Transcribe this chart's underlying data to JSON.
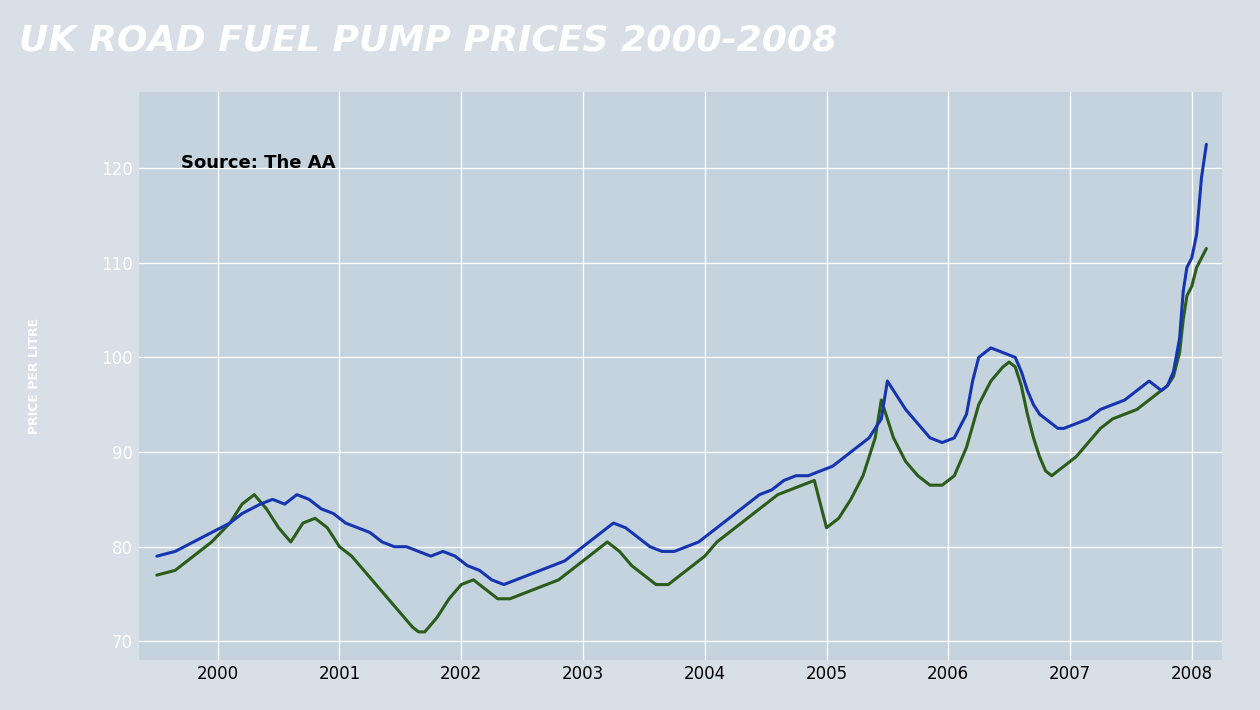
{
  "title": "UK ROAD FUEL PUMP PRICES 2000-2008",
  "title_fontsize": 26,
  "title_fontstyle": "italic",
  "title_fontweight": "bold",
  "title_bg": "#111111",
  "title_color": "#ffffff",
  "source_text": "Source: The AA",
  "ylabel": "PRICE PER LITRE",
  "ylim": [
    68,
    128
  ],
  "yticks": [
    70,
    80,
    90,
    100,
    110,
    120
  ],
  "outer_bg": "#d8dfe6",
  "plot_bg": "#c4d3de",
  "grid_color": "#ffffff",
  "left_bar_color": "#111111",
  "blue_color": "#1535b0",
  "green_color": "#2a5c1a",
  "line_width": 2.2,
  "x_tick_labels": [
    "2000",
    "2001",
    "2002",
    "2003",
    "2004",
    "2005",
    "2006",
    "2007",
    "2008"
  ],
  "blue_data": [
    [
      1999.5,
      79.0
    ],
    [
      1999.65,
      79.5
    ],
    [
      1999.8,
      80.5
    ],
    [
      1999.95,
      81.5
    ],
    [
      2000.1,
      82.5
    ],
    [
      2000.2,
      83.5
    ],
    [
      2000.35,
      84.5
    ],
    [
      2000.45,
      85.0
    ],
    [
      2000.55,
      84.5
    ],
    [
      2000.65,
      85.5
    ],
    [
      2000.75,
      85.0
    ],
    [
      2000.85,
      84.0
    ],
    [
      2000.95,
      83.5
    ],
    [
      2001.05,
      82.5
    ],
    [
      2001.15,
      82.0
    ],
    [
      2001.25,
      81.5
    ],
    [
      2001.35,
      80.5
    ],
    [
      2001.45,
      80.0
    ],
    [
      2001.55,
      80.0
    ],
    [
      2001.65,
      79.5
    ],
    [
      2001.75,
      79.0
    ],
    [
      2001.85,
      79.5
    ],
    [
      2001.95,
      79.0
    ],
    [
      2002.05,
      78.0
    ],
    [
      2002.15,
      77.5
    ],
    [
      2002.25,
      76.5
    ],
    [
      2002.35,
      76.0
    ],
    [
      2002.45,
      76.5
    ],
    [
      2002.55,
      77.0
    ],
    [
      2002.65,
      77.5
    ],
    [
      2002.75,
      78.0
    ],
    [
      2002.85,
      78.5
    ],
    [
      2002.95,
      79.5
    ],
    [
      2003.05,
      80.5
    ],
    [
      2003.15,
      81.5
    ],
    [
      2003.25,
      82.5
    ],
    [
      2003.35,
      82.0
    ],
    [
      2003.45,
      81.0
    ],
    [
      2003.55,
      80.0
    ],
    [
      2003.65,
      79.5
    ],
    [
      2003.75,
      79.5
    ],
    [
      2003.85,
      80.0
    ],
    [
      2003.95,
      80.5
    ],
    [
      2004.05,
      81.5
    ],
    [
      2004.15,
      82.5
    ],
    [
      2004.25,
      83.5
    ],
    [
      2004.35,
      84.5
    ],
    [
      2004.45,
      85.5
    ],
    [
      2004.55,
      86.0
    ],
    [
      2004.65,
      87.0
    ],
    [
      2004.75,
      87.5
    ],
    [
      2004.85,
      87.5
    ],
    [
      2004.95,
      88.0
    ],
    [
      2005.05,
      88.5
    ],
    [
      2005.15,
      89.5
    ],
    [
      2005.25,
      90.5
    ],
    [
      2005.35,
      91.5
    ],
    [
      2005.45,
      93.5
    ],
    [
      2005.5,
      97.5
    ],
    [
      2005.55,
      96.5
    ],
    [
      2005.65,
      94.5
    ],
    [
      2005.75,
      93.0
    ],
    [
      2005.85,
      91.5
    ],
    [
      2005.95,
      91.0
    ],
    [
      2006.05,
      91.5
    ],
    [
      2006.15,
      94.0
    ],
    [
      2006.2,
      97.5
    ],
    [
      2006.25,
      100.0
    ],
    [
      2006.35,
      101.0
    ],
    [
      2006.45,
      100.5
    ],
    [
      2006.55,
      100.0
    ],
    [
      2006.6,
      98.5
    ],
    [
      2006.65,
      96.5
    ],
    [
      2006.7,
      95.0
    ],
    [
      2006.75,
      94.0
    ],
    [
      2006.8,
      93.5
    ],
    [
      2006.85,
      93.0
    ],
    [
      2006.9,
      92.5
    ],
    [
      2006.95,
      92.5
    ],
    [
      2007.05,
      93.0
    ],
    [
      2007.15,
      93.5
    ],
    [
      2007.25,
      94.5
    ],
    [
      2007.35,
      95.0
    ],
    [
      2007.45,
      95.5
    ],
    [
      2007.55,
      96.5
    ],
    [
      2007.65,
      97.5
    ],
    [
      2007.7,
      97.0
    ],
    [
      2007.75,
      96.5
    ],
    [
      2007.8,
      97.0
    ],
    [
      2007.85,
      98.5
    ],
    [
      2007.9,
      102.0
    ],
    [
      2007.93,
      107.0
    ],
    [
      2007.96,
      109.5
    ],
    [
      2008.0,
      110.5
    ],
    [
      2008.04,
      113.0
    ],
    [
      2008.08,
      119.0
    ],
    [
      2008.12,
      122.5
    ]
  ],
  "green_data": [
    [
      1999.5,
      77.0
    ],
    [
      1999.65,
      77.5
    ],
    [
      1999.8,
      79.0
    ],
    [
      1999.95,
      80.5
    ],
    [
      2000.1,
      82.5
    ],
    [
      2000.2,
      84.5
    ],
    [
      2000.3,
      85.5
    ],
    [
      2000.4,
      84.0
    ],
    [
      2000.5,
      82.0
    ],
    [
      2000.6,
      80.5
    ],
    [
      2000.7,
      82.5
    ],
    [
      2000.8,
      83.0
    ],
    [
      2000.9,
      82.0
    ],
    [
      2001.0,
      80.0
    ],
    [
      2001.1,
      79.0
    ],
    [
      2001.2,
      77.5
    ],
    [
      2001.3,
      76.0
    ],
    [
      2001.4,
      74.5
    ],
    [
      2001.5,
      73.0
    ],
    [
      2001.6,
      71.5
    ],
    [
      2001.65,
      71.0
    ],
    [
      2001.7,
      71.0
    ],
    [
      2001.8,
      72.5
    ],
    [
      2001.9,
      74.5
    ],
    [
      2002.0,
      76.0
    ],
    [
      2002.1,
      76.5
    ],
    [
      2002.2,
      75.5
    ],
    [
      2002.3,
      74.5
    ],
    [
      2002.4,
      74.5
    ],
    [
      2002.5,
      75.0
    ],
    [
      2002.6,
      75.5
    ],
    [
      2002.7,
      76.0
    ],
    [
      2002.8,
      76.5
    ],
    [
      2002.9,
      77.5
    ],
    [
      2003.0,
      78.5
    ],
    [
      2003.1,
      79.5
    ],
    [
      2003.2,
      80.5
    ],
    [
      2003.3,
      79.5
    ],
    [
      2003.4,
      78.0
    ],
    [
      2003.5,
      77.0
    ],
    [
      2003.6,
      76.0
    ],
    [
      2003.7,
      76.0
    ],
    [
      2003.8,
      77.0
    ],
    [
      2003.9,
      78.0
    ],
    [
      2004.0,
      79.0
    ],
    [
      2004.1,
      80.5
    ],
    [
      2004.2,
      81.5
    ],
    [
      2004.3,
      82.5
    ],
    [
      2004.4,
      83.5
    ],
    [
      2004.5,
      84.5
    ],
    [
      2004.6,
      85.5
    ],
    [
      2004.7,
      86.0
    ],
    [
      2004.8,
      86.5
    ],
    [
      2004.9,
      87.0
    ],
    [
      2005.0,
      82.0
    ],
    [
      2005.1,
      83.0
    ],
    [
      2005.2,
      85.0
    ],
    [
      2005.3,
      87.5
    ],
    [
      2005.4,
      91.5
    ],
    [
      2005.45,
      95.5
    ],
    [
      2005.5,
      93.5
    ],
    [
      2005.55,
      91.5
    ],
    [
      2005.65,
      89.0
    ],
    [
      2005.75,
      87.5
    ],
    [
      2005.85,
      86.5
    ],
    [
      2005.95,
      86.5
    ],
    [
      2006.05,
      87.5
    ],
    [
      2006.15,
      90.5
    ],
    [
      2006.25,
      95.0
    ],
    [
      2006.35,
      97.5
    ],
    [
      2006.45,
      99.0
    ],
    [
      2006.5,
      99.5
    ],
    [
      2006.55,
      99.0
    ],
    [
      2006.6,
      97.0
    ],
    [
      2006.65,
      94.0
    ],
    [
      2006.7,
      91.5
    ],
    [
      2006.75,
      89.5
    ],
    [
      2006.8,
      88.0
    ],
    [
      2006.85,
      87.5
    ],
    [
      2006.9,
      88.0
    ],
    [
      2006.95,
      88.5
    ],
    [
      2007.05,
      89.5
    ],
    [
      2007.15,
      91.0
    ],
    [
      2007.25,
      92.5
    ],
    [
      2007.35,
      93.5
    ],
    [
      2007.45,
      94.0
    ],
    [
      2007.55,
      94.5
    ],
    [
      2007.65,
      95.5
    ],
    [
      2007.7,
      96.0
    ],
    [
      2007.75,
      96.5
    ],
    [
      2007.8,
      97.0
    ],
    [
      2007.85,
      98.0
    ],
    [
      2007.9,
      100.5
    ],
    [
      2007.93,
      104.0
    ],
    [
      2007.96,
      106.5
    ],
    [
      2008.0,
      107.5
    ],
    [
      2008.04,
      109.5
    ],
    [
      2008.08,
      110.5
    ],
    [
      2008.12,
      111.5
    ]
  ]
}
